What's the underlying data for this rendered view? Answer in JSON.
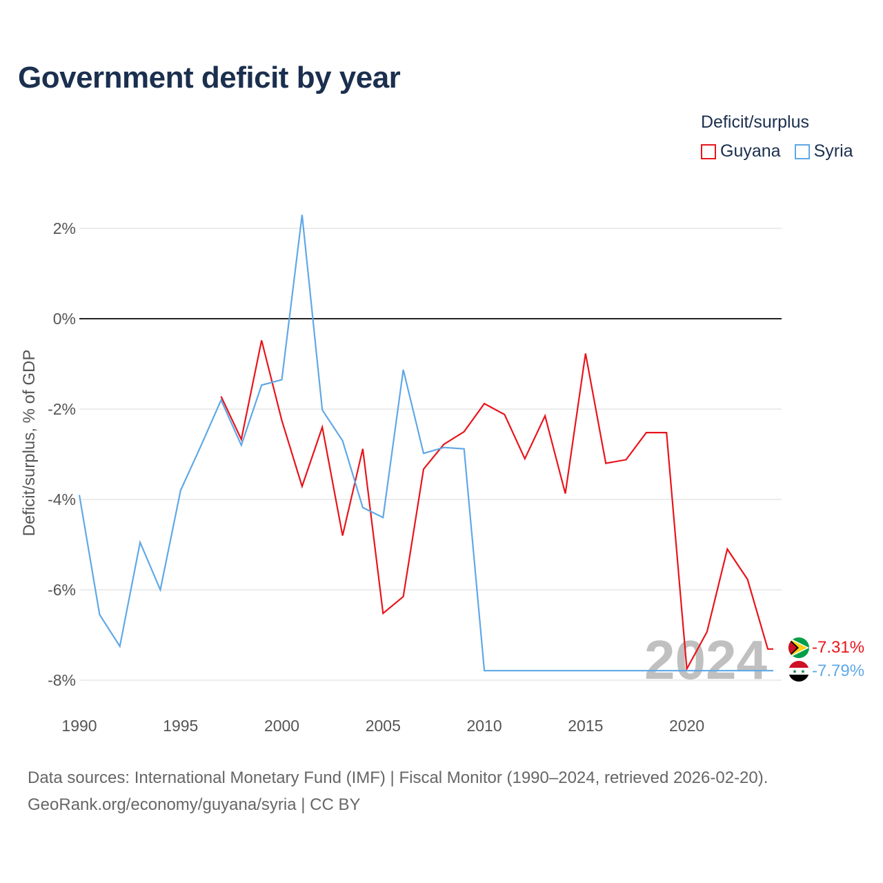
{
  "title": "Government deficit by year",
  "legend": {
    "title": "Deficit/surplus",
    "items": [
      {
        "label": "Guyana",
        "color": "#e8141b"
      },
      {
        "label": "Syria",
        "color": "#5fa8e6"
      }
    ]
  },
  "source": {
    "line1": "Data sources: International Monetary Fund (IMF) | Fiscal Monitor (1990–2024, retrieved 2026-02-20).",
    "line2": "GeoRank.org/economy/guyana/syria | CC BY"
  },
  "year_watermark": "2024",
  "chart_data": {
    "type": "line",
    "title": "Government deficit by year",
    "xlabel": "",
    "ylabel": "Deficit/surplus, % of GDP",
    "xlim": [
      1990,
      2024
    ],
    "ylim": [
      -8,
      2
    ],
    "xticks": [
      1990,
      1995,
      2000,
      2005,
      2010,
      2015,
      2020
    ],
    "xtick_labels": [
      "1990",
      "1995",
      "2000",
      "2005",
      "2010",
      "2015",
      "2020"
    ],
    "yticks": [
      2,
      0,
      -2,
      -4,
      -6,
      -8
    ],
    "ytick_labels": [
      "2%",
      "0%",
      "-2%",
      "-4%",
      "-6%",
      "-8%"
    ],
    "series": [
      {
        "name": "Guyana",
        "color": "#e8141b",
        "end_label": "-7.31%",
        "points": [
          [
            1997,
            -1.72
          ],
          [
            1998,
            -2.67
          ],
          [
            1999,
            -0.48
          ],
          [
            2000,
            -2.25
          ],
          [
            2001,
            -3.71
          ],
          [
            2002,
            -2.4
          ],
          [
            2003,
            -4.8
          ],
          [
            2004,
            -2.88
          ],
          [
            2005,
            -6.52
          ],
          [
            2006,
            -6.15
          ],
          [
            2007,
            -3.33
          ],
          [
            2008,
            -2.78
          ],
          [
            2009,
            -2.5
          ],
          [
            2010,
            -1.88
          ],
          [
            2011,
            -2.12
          ],
          [
            2012,
            -3.1
          ],
          [
            2013,
            -2.15
          ],
          [
            2014,
            -3.87
          ],
          [
            2015,
            -0.77
          ],
          [
            2016,
            -3.2
          ],
          [
            2017,
            -3.12
          ],
          [
            2018,
            -2.52
          ],
          [
            2019,
            -2.52
          ],
          [
            2020,
            -7.75
          ],
          [
            2021,
            -6.93
          ],
          [
            2022,
            -5.1
          ],
          [
            2023,
            -5.77
          ],
          [
            2024,
            -7.31
          ]
        ]
      },
      {
        "name": "Syria",
        "color": "#5fa8e6",
        "end_label": "-7.79%",
        "points": [
          [
            1990,
            -3.9
          ],
          [
            1991,
            -6.55
          ],
          [
            1992,
            -7.25
          ],
          [
            1993,
            -4.95
          ],
          [
            1994,
            -6.0
          ],
          [
            1995,
            -3.8
          ],
          [
            1996,
            -2.82
          ],
          [
            1997,
            -1.8
          ],
          [
            1998,
            -2.8
          ],
          [
            1999,
            -1.47
          ],
          [
            2000,
            -1.35
          ],
          [
            2001,
            2.3
          ],
          [
            2002,
            -2.02
          ],
          [
            2003,
            -2.7
          ],
          [
            2004,
            -4.18
          ],
          [
            2005,
            -4.4
          ],
          [
            2006,
            -1.13
          ],
          [
            2007,
            -2.98
          ],
          [
            2008,
            -2.85
          ],
          [
            2009,
            -2.88
          ],
          [
            2010,
            -7.79
          ],
          [
            2011,
            -7.79
          ],
          [
            2012,
            -7.79
          ],
          [
            2013,
            -7.79
          ],
          [
            2014,
            -7.79
          ],
          [
            2015,
            -7.79
          ],
          [
            2016,
            -7.79
          ],
          [
            2017,
            -7.79
          ],
          [
            2018,
            -7.79
          ],
          [
            2019,
            -7.79
          ],
          [
            2020,
            -7.79
          ],
          [
            2021,
            -7.79
          ],
          [
            2022,
            -7.79
          ],
          [
            2023,
            -7.79
          ],
          [
            2024,
            -7.79
          ]
        ]
      }
    ]
  }
}
